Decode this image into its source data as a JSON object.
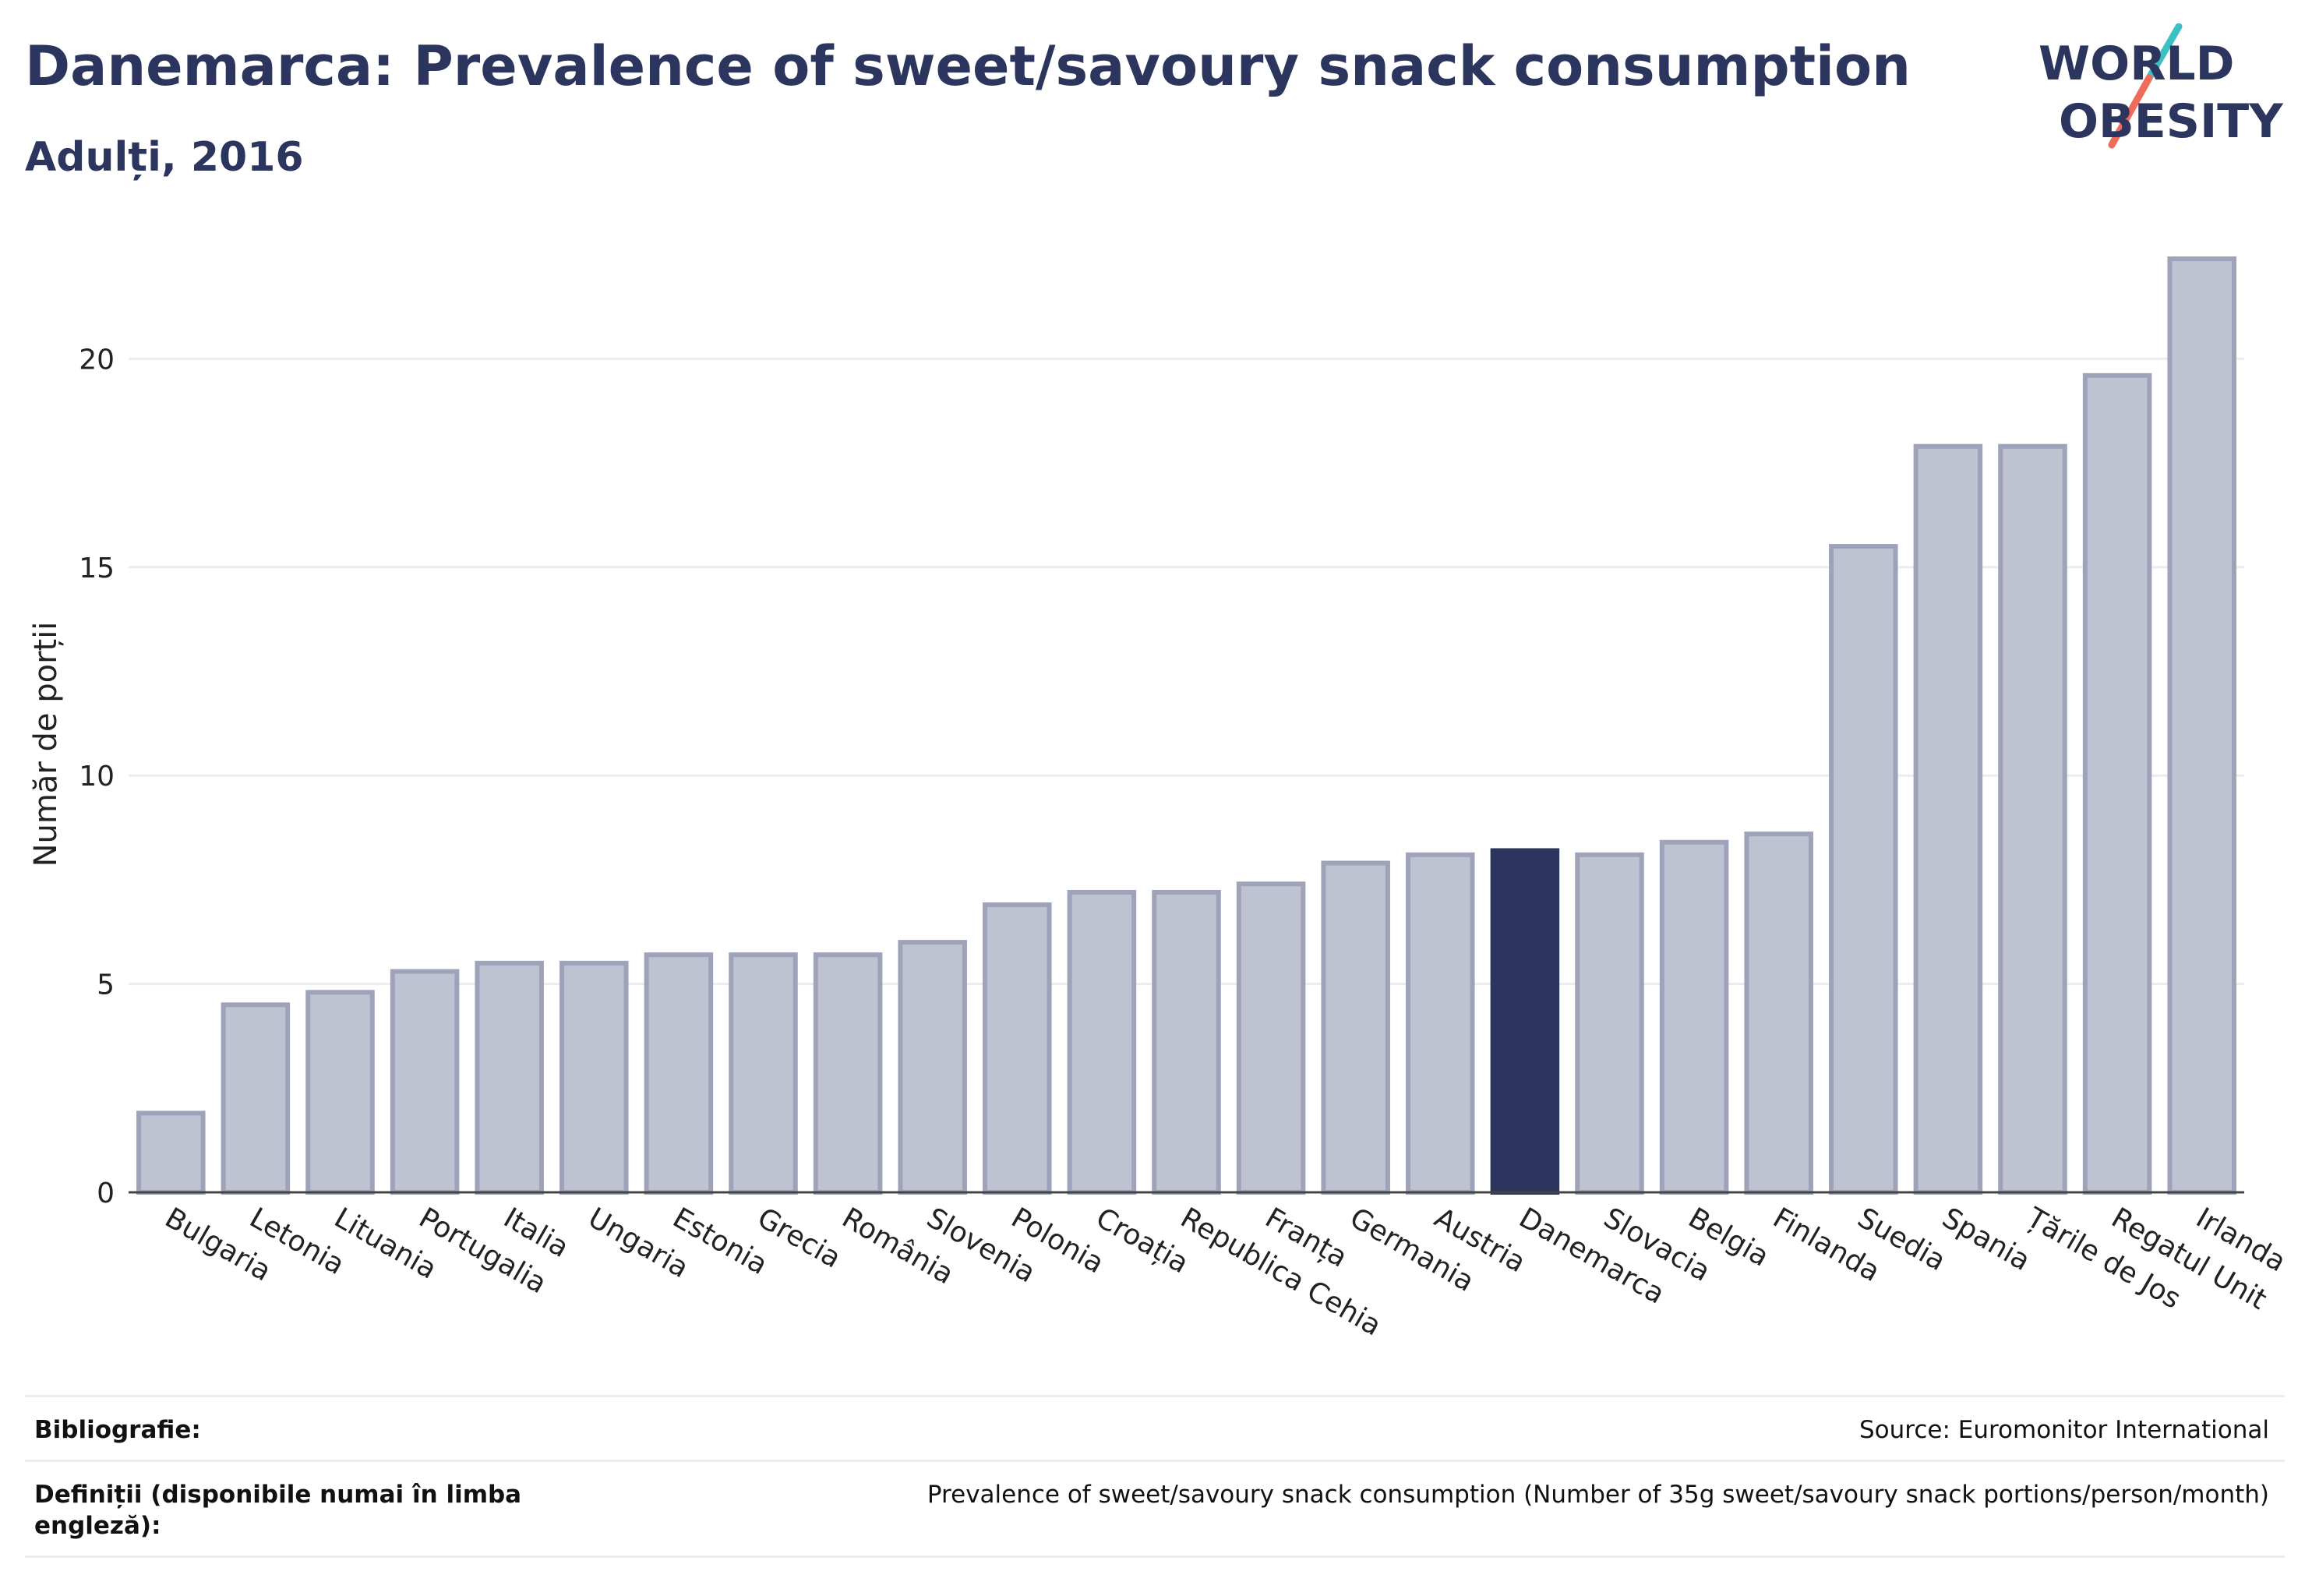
{
  "header": {
    "title": "Danemarca: Prevalence of sweet/savoury snack consumption",
    "subtitle": "Adulți, 2016"
  },
  "logo": {
    "line1": "WORLD",
    "line2": "OBESITY",
    "colors": {
      "text": "#2b355e",
      "slash_top": "#3cc0c4",
      "slash_bottom": "#ef6b5b"
    }
  },
  "colors": {
    "bar_fill": "#bfc2d0",
    "bar_stroke": "#9ea3ba",
    "highlight_fill": "#2b355e",
    "grid": "#ececef",
    "axis": "#444444"
  },
  "chart_data": {
    "type": "bar",
    "title": "",
    "xlabel": "",
    "ylabel": "Număr de porții",
    "ylim": [
      0,
      23
    ],
    "yticks": [
      0,
      5,
      10,
      15,
      20
    ],
    "grid": true,
    "highlight": "Danemarca",
    "categories": [
      "Bulgaria",
      "Letonia",
      "Lituania",
      "Portugalia",
      "Italia",
      "Ungaria",
      "Estonia",
      "Grecia",
      "România",
      "Slovenia",
      "Polonia",
      "Croația",
      "Republica Cehia",
      "Franța",
      "Germania",
      "Austria",
      "Danemarca",
      "Slovacia",
      "Belgia",
      "Finlanda",
      "Suedia",
      "Spania",
      "Țările de Jos",
      "Regatul Unit",
      "Irlanda"
    ],
    "values": [
      1.9,
      4.5,
      4.8,
      5.3,
      5.5,
      5.5,
      5.7,
      5.7,
      5.7,
      6.0,
      6.9,
      7.2,
      7.2,
      7.4,
      7.9,
      8.1,
      8.2,
      8.1,
      8.4,
      8.6,
      15.5,
      17.9,
      17.9,
      19.6,
      22.4
    ]
  },
  "footer": {
    "rows": [
      {
        "label": "Bibliografie:",
        "value": "Source: Euromonitor International"
      },
      {
        "label": "Definiții (disponibile numai în limba engleză):",
        "value": "Prevalence of sweet/savoury snack consumption (Number of 35g sweet/savoury snack portions/person/month)"
      }
    ]
  }
}
